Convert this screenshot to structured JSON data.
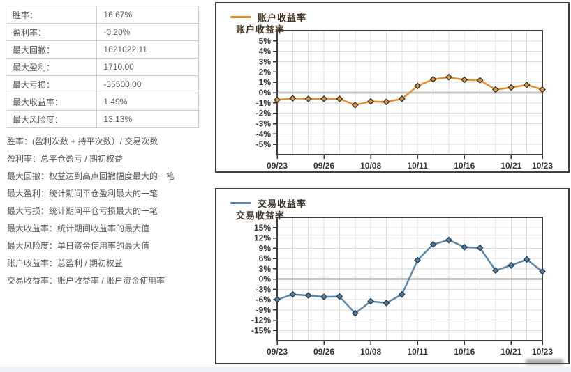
{
  "stats_table": {
    "rows": [
      {
        "label": "胜率：",
        "value": "16.67%"
      },
      {
        "label": "盈利率：",
        "value": "-0.20%"
      },
      {
        "label": "最大回撤：",
        "value": "1621022.11"
      },
      {
        "label": "最大盈利：",
        "value": "1710.00"
      },
      {
        "label": "最大亏损：",
        "value": "-35500.00"
      },
      {
        "label": "最大收益率：",
        "value": "1.49%"
      },
      {
        "label": "最大风险度：",
        "value": "13.13%"
      }
    ]
  },
  "definitions": [
    "胜率：(盈利次数 + 持平次数）/ 交易次数",
    "盈利率：总平仓盈亏 / 期初权益",
    "最大回撤：权益达到高点回撤幅度最大的一笔",
    "最大盈利：统计期间平仓盈利最大的一笔",
    "最大亏损：统计期间平仓亏损最大的一笔",
    "最大收益率：统计期间收益率的最大值",
    "最大风险度：单日资金使用率的最大值",
    "账户收益率：总盈利 / 期初权益",
    "交易收益率：账户收益率 / 账户资金使用率"
  ],
  "colors": {
    "grid": "#dcdcdc",
    "zero_line": "#c6c6c6",
    "plot_border": "#3f3f3f",
    "tick_text": "#333333",
    "table_border": "#cccccc",
    "body_text": "#595959",
    "bottom_strip": "#eef1f7"
  },
  "chart_data": [
    {
      "type": "line",
      "title": "账户收益率",
      "ylabel": "账户收益率",
      "legend": {
        "label": "账户收益率",
        "position": "top-left"
      },
      "grid": true,
      "ylim": [
        -6,
        6
      ],
      "y_tick_values": [
        5,
        4,
        3,
        2,
        1,
        0,
        -1,
        -2,
        -3,
        -4,
        -5
      ],
      "y_tick_suffix": "%",
      "x_tick_labels": [
        "09/23",
        "09/26",
        "10/08",
        "10/11",
        "10/16",
        "10/21",
        "10/23"
      ],
      "x_tick_indices": [
        0,
        3,
        6,
        9,
        12,
        15,
        17
      ],
      "series": [
        {
          "name": "账户收益率",
          "values_pct": [
            -0.7,
            -0.55,
            -0.6,
            -0.6,
            -0.6,
            -1.2,
            -0.85,
            -0.9,
            -0.6,
            0.65,
            1.3,
            1.5,
            1.25,
            1.2,
            0.3,
            0.5,
            0.75,
            0.3
          ]
        }
      ],
      "line_color": "#e0912f",
      "marker_fill": "#cf9a52",
      "marker_stroke": "#3f2d15",
      "label_color": "#40311e"
    },
    {
      "type": "line",
      "title": "交易收益率",
      "ylabel": "交易收益率",
      "legend": {
        "label": "交易收益率",
        "position": "top-left"
      },
      "grid": true,
      "ylim": [
        -18,
        18
      ],
      "y_tick_values": [
        15,
        12,
        9,
        6,
        3,
        0,
        -3,
        -6,
        -9,
        -12,
        -15
      ],
      "y_tick_suffix": "%",
      "x_tick_labels": [
        "09/23",
        "09/26",
        "10/08",
        "10/11",
        "10/16",
        "10/21",
        "10/23"
      ],
      "x_tick_indices": [
        0,
        3,
        6,
        9,
        12,
        15,
        17
      ],
      "series": [
        {
          "name": "交易收益率",
          "values_pct": [
            -6,
            -4.5,
            -4.8,
            -5.2,
            -5.1,
            -10,
            -6.5,
            -7,
            -4.5,
            5.5,
            10.1,
            11.4,
            9.3,
            9.1,
            2.5,
            4,
            5.7,
            2.2
          ]
        }
      ],
      "line_color": "#5d86a8",
      "marker_fill": "#567d9c",
      "marker_stroke": "#243a4e",
      "label_color": "#36302a"
    }
  ]
}
